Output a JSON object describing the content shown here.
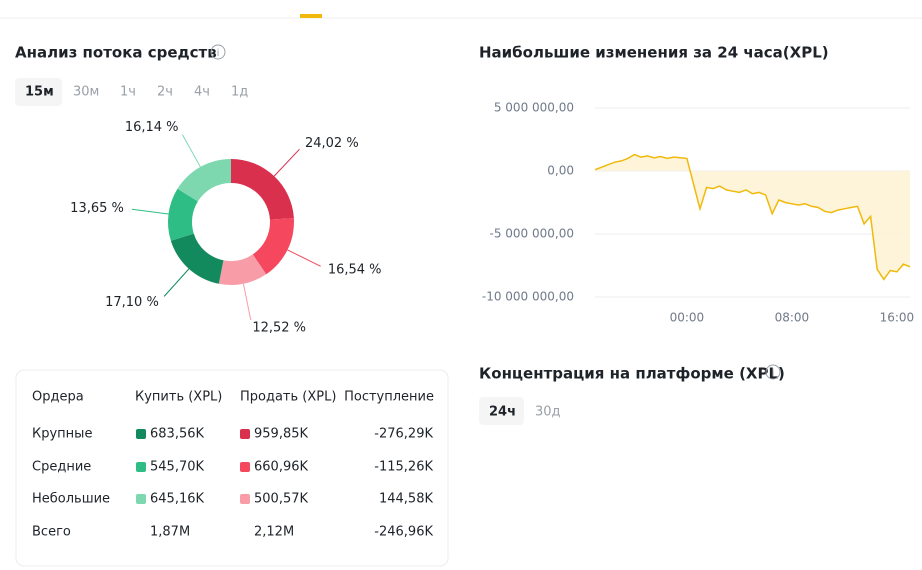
{
  "chart_data": [
    {
      "type": "donut",
      "title": "Анализ потока средств",
      "values": [
        24.02,
        16.54,
        12.52,
        17.1,
        13.65,
        16.14
      ],
      "value_labels": [
        "24,02 %",
        "16,54 %",
        "12,52 %",
        "17,10 %",
        "13,65 %",
        "16,14 %"
      ],
      "colors": [
        "#d9304e",
        "#f5475d",
        "#f89da8",
        "#138a5d",
        "#2ebd85",
        "#7dd8b0"
      ]
    },
    {
      "type": "area",
      "title": "Наибольшие изменения за 24 часа(XPL)",
      "x": [
        -7,
        -6.5,
        -6,
        -5.5,
        -5,
        -4.5,
        -4,
        -3.5,
        -3,
        -2.5,
        -2,
        -1.5,
        -1,
        -0.5,
        0,
        0.5,
        1,
        1.5,
        2,
        2.5,
        3,
        3.5,
        4,
        4.5,
        5,
        5.5,
        6,
        6.5,
        7,
        7.5,
        8,
        8.5,
        9,
        9.5,
        10,
        10.5,
        11,
        11.5,
        12,
        12.5,
        13,
        13.5,
        14,
        14.5,
        15,
        15.5,
        16,
        16.5,
        17
      ],
      "values": [
        100000,
        300000,
        500000,
        700000,
        800000,
        1000000,
        1300000,
        1100000,
        1200000,
        1050000,
        1150000,
        1000000,
        1100000,
        1050000,
        1000000,
        -1000000,
        -3000000,
        -1300000,
        -1400000,
        -1200000,
        -1500000,
        -1600000,
        -1700000,
        -1500000,
        -1800000,
        -1700000,
        -1900000,
        -3400000,
        -2300000,
        -2500000,
        -2600000,
        -2700000,
        -2600000,
        -2800000,
        -2900000,
        -3200000,
        -3300000,
        -3100000,
        -3000000,
        -2900000,
        -2800000,
        -4200000,
        -3600000,
        -7800000,
        -8600000,
        -7900000,
        -8000000,
        -7400000,
        -7600000
      ],
      "color": "#f0b90b",
      "xlim": [
        -7,
        17
      ],
      "xticks": [
        {
          "value": 0,
          "label": "00:00"
        },
        {
          "value": 8,
          "label": "08:00"
        },
        {
          "value": 16,
          "label": "16:00"
        }
      ],
      "ylim": [
        -10000000,
        5000000
      ],
      "yticks": [
        {
          "value": 5000000,
          "label": "5 000 000,00"
        },
        {
          "value": 0,
          "label": "0,00"
        },
        {
          "value": -5000000,
          "label": "-5 000 000,00"
        },
        {
          "value": -10000000,
          "label": "-10 000 000,00"
        }
      ],
      "grid": true
    }
  ],
  "flow_tabs": [
    "15м",
    "30м",
    "1ч",
    "2ч",
    "4ч",
    "1д"
  ],
  "flow_table": {
    "headers": [
      "Ордера",
      "Купить (XPL)",
      "Продать (XPL)",
      "Поступление"
    ],
    "rows": [
      [
        "Крупные",
        "683,56K",
        "959,85K",
        "-276,29K"
      ],
      [
        "Средние",
        "545,70K",
        "660,96K",
        "-115,26K"
      ],
      [
        "Небольшие",
        "645,16K",
        "500,57K",
        "144,58K"
      ],
      [
        "Всего",
        "1,87M",
        "2,12M",
        "-246,96K"
      ]
    ]
  },
  "concentration": {
    "title": "Концентрация на платформе (XPL)",
    "tabs": [
      "24ч",
      "30д"
    ]
  }
}
